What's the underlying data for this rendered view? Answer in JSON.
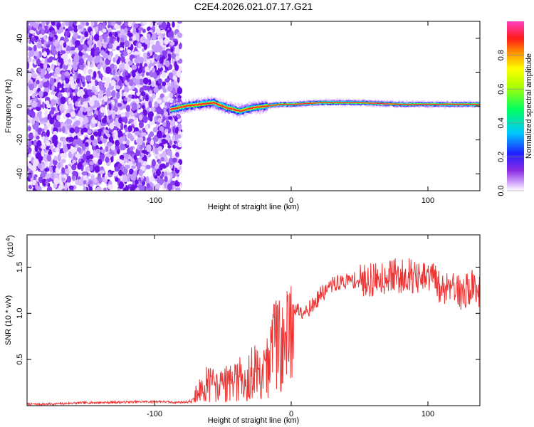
{
  "title": "C2E4.2026.021.07.17.G21",
  "colors": {
    "snr_line": "#ee3333",
    "spectrum_scatter": "#7a1fe0",
    "spectrum_band": "#ff2a2a",
    "axis": "#000000",
    "background": "#ffffff"
  },
  "chart_data": [
    {
      "type": "heatmap",
      "name": "spectrogram",
      "xlabel": "Height of straight line (km)",
      "ylabel": "Frequency (Hz)",
      "xlim": [
        -200,
        140
      ],
      "ylim": [
        -50,
        50
      ],
      "xticks": [
        -100,
        0,
        100
      ],
      "xtick_labels": [
        "-100",
        "0",
        "100"
      ],
      "yticks": [
        -40,
        -20,
        0,
        20,
        40
      ],
      "ytick_labels": [
        "-40",
        "-20",
        "0",
        "20",
        "40"
      ],
      "noise_region_x": [
        -200,
        -85
      ],
      "signal_region_x": [
        -92,
        140
      ],
      "signal_frequency_hz": 1,
      "signal_frequency_track": [
        {
          "x": -92,
          "y": -2
        },
        {
          "x": -80,
          "y": 0
        },
        {
          "x": -70,
          "y": 1
        },
        {
          "x": -60,
          "y": 2
        },
        {
          "x": -50,
          "y": -1
        },
        {
          "x": -40,
          "y": -3
        },
        {
          "x": -30,
          "y": -1
        },
        {
          "x": -20,
          "y": 0
        },
        {
          "x": -10,
          "y": 1
        },
        {
          "x": 0,
          "y": 1
        },
        {
          "x": 20,
          "y": 2
        },
        {
          "x": 50,
          "y": 2
        },
        {
          "x": 80,
          "y": 1
        },
        {
          "x": 100,
          "y": 1
        },
        {
          "x": 120,
          "y": 1
        },
        {
          "x": 140,
          "y": 1
        }
      ],
      "colorbar": {
        "label": "Normalized spectral amplitude",
        "range": [
          0,
          1
        ],
        "ticks": [
          0.0,
          0.2,
          0.4,
          0.6,
          0.8
        ],
        "tick_labels": [
          "0.0",
          "0.2",
          "0.4",
          "0.6",
          "0.8"
        ],
        "colormap": "rainbow"
      }
    },
    {
      "type": "line",
      "name": "snr",
      "xlabel": "Height of straight line (km)",
      "ylabel": "SNR (10 * v/v)",
      "y_multiplier": "(x10",
      "y_multiplier_exponent": "4",
      "xlim": [
        -200,
        140
      ],
      "ylim": [
        0,
        18500
      ],
      "xticks": [
        -100,
        0,
        100
      ],
      "xtick_labels": [
        "-100",
        "0",
        "100"
      ],
      "yticks": [
        5000,
        10000,
        15000
      ],
      "ytick_labels": [
        "0.5",
        "1.0",
        "1.5"
      ],
      "series": [
        {
          "name": "SNR",
          "x": [
            -200,
            -180,
            -160,
            -140,
            -120,
            -100,
            -90,
            -80,
            -76,
            -72,
            -68,
            -64,
            -60,
            -56,
            -52,
            -48,
            -44,
            -40,
            -36,
            -32,
            -28,
            -24,
            -20,
            -16,
            -12,
            -8,
            -4,
            0,
            4,
            8,
            12,
            16,
            20,
            25,
            30,
            35,
            40,
            45,
            50,
            55,
            60,
            65,
            70,
            75,
            80,
            85,
            90,
            95,
            100,
            105,
            110,
            115,
            120,
            125,
            130,
            135,
            140
          ],
          "y": [
            150,
            180,
            300,
            350,
            400,
            450,
            350,
            400,
            500,
            2500,
            3000,
            3300,
            3000,
            2900,
            3200,
            3500,
            3300,
            4000,
            4200,
            4600,
            5000,
            5500,
            5800,
            8000,
            9000,
            10000,
            10800,
            10600,
            10400,
            10300,
            10600,
            11000,
            12000,
            12500,
            13200,
            13300,
            13500,
            13600,
            13400,
            13700,
            13600,
            13800,
            14000,
            14200,
            13800,
            14400,
            14000,
            13500,
            13800,
            14000,
            12500,
            13000,
            13500,
            12000,
            12500,
            13000,
            12300
          ]
        }
      ]
    }
  ]
}
